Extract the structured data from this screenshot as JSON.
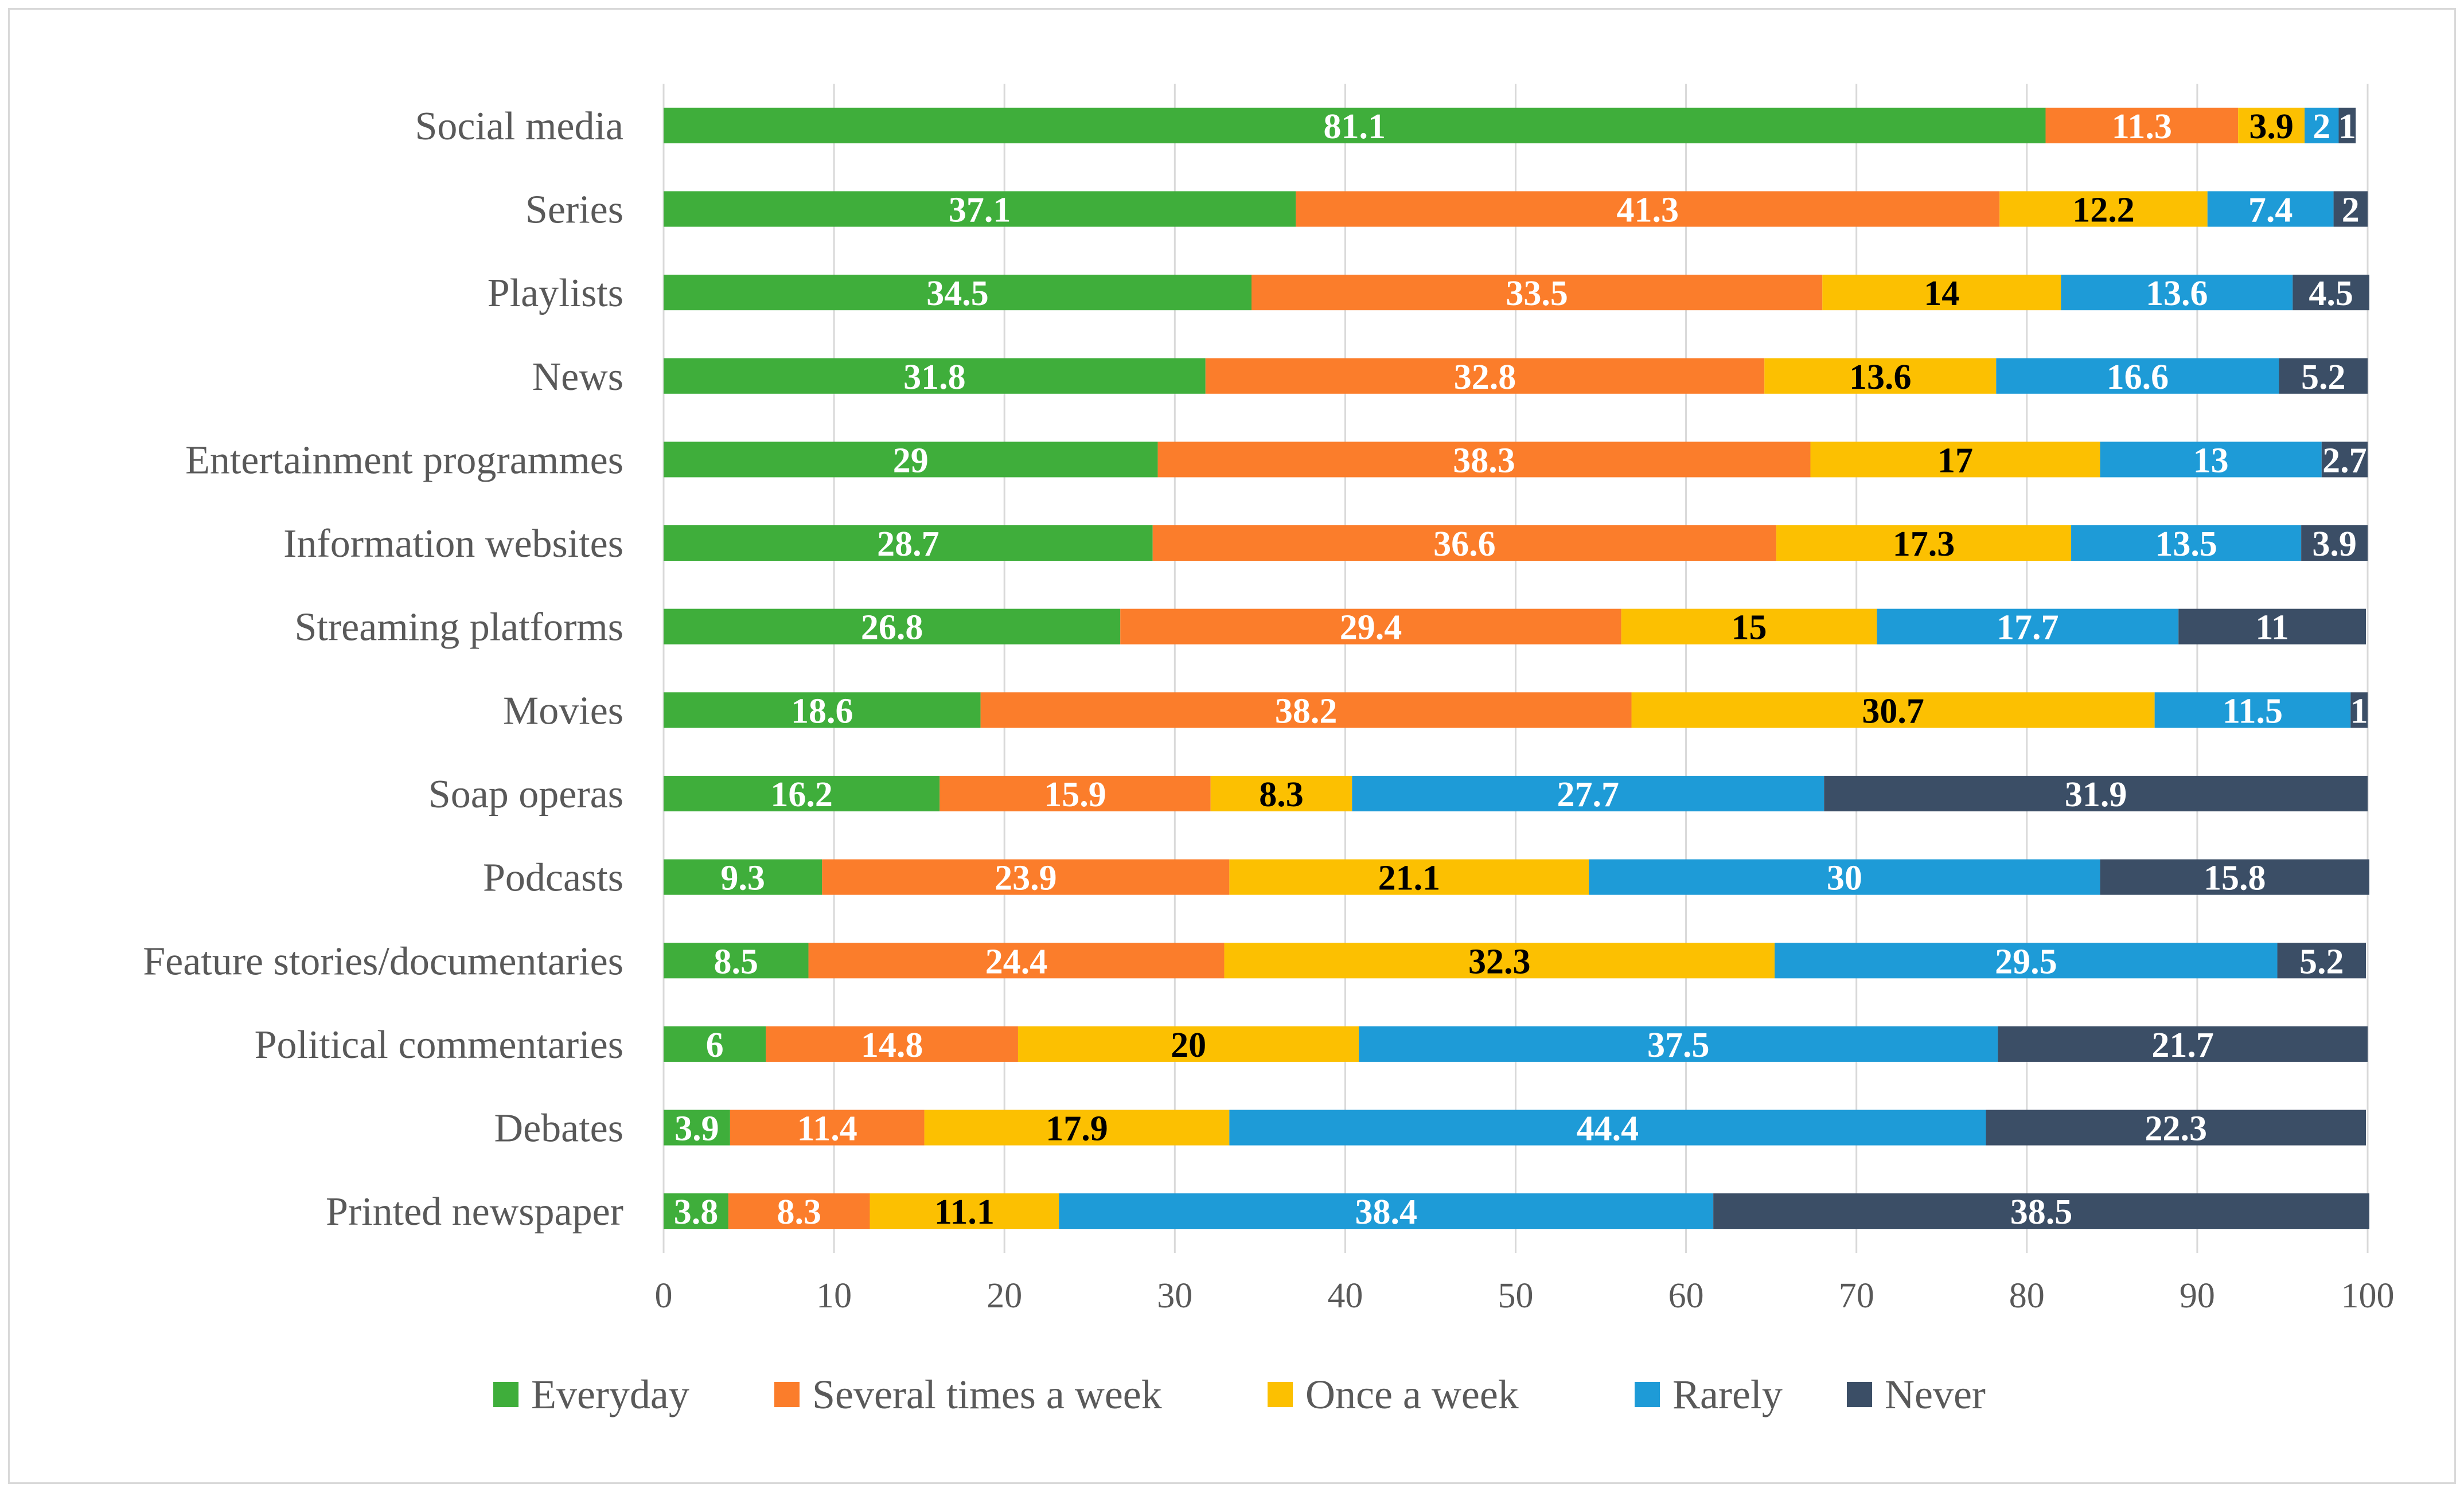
{
  "chart_data": {
    "type": "bar",
    "orientation": "horizontal",
    "stacked": true,
    "title": "",
    "xlabel": "",
    "ylabel": "",
    "xlim": [
      0,
      100
    ],
    "x_ticks": [
      "0",
      "10",
      "20",
      "30",
      "40",
      "50",
      "60",
      "70",
      "80",
      "90",
      "100"
    ],
    "grid": true,
    "legend_position": "bottom",
    "categories": [
      "Social media",
      "Series",
      "Playlists",
      "News",
      "Entertainment programmes",
      "Information websites",
      "Streaming platforms",
      "Movies",
      "Soap operas",
      "Podcasts",
      "Feature stories/documentaries",
      "Political commentaries",
      "Debates",
      "Printed newspaper"
    ],
    "series": [
      {
        "name": "Everyday",
        "color": "#3fae3b",
        "label_color": "#ffffff",
        "values": [
          81.1,
          37.1,
          34.5,
          31.8,
          29,
          28.7,
          26.8,
          18.6,
          16.2,
          9.3,
          8.5,
          6,
          3.9,
          3.8
        ],
        "labels": [
          "81.1",
          "37.1",
          "34.5",
          "31.8",
          "29",
          "28.7",
          "26.8",
          "18.6",
          "16.2",
          "9.3",
          "8.5",
          "6",
          "3.9",
          "3.8"
        ]
      },
      {
        "name": "Several times a week",
        "color": "#fb7d2b",
        "label_color": "#ffffff",
        "values": [
          11.3,
          41.3,
          33.5,
          32.8,
          38.3,
          36.6,
          29.4,
          38.2,
          15.9,
          23.9,
          24.4,
          14.8,
          11.4,
          8.3
        ],
        "labels": [
          "11.3",
          "41.3",
          "33.5",
          "32.8",
          "38.3",
          "36.6",
          "29.4",
          "38.2",
          "15.9",
          "23.9",
          "24.4",
          "14.8",
          "11.4",
          "8.3"
        ]
      },
      {
        "name": "Once a week",
        "color": "#fcc001",
        "label_color": "#000000",
        "values": [
          3.9,
          12.2,
          14,
          13.6,
          17,
          17.3,
          15,
          30.7,
          8.3,
          21.1,
          32.3,
          20,
          17.9,
          11.1
        ],
        "labels": [
          "3.9",
          "12.2",
          "14",
          "13.6",
          "17",
          "17.3",
          "15",
          "30.7",
          "8.3",
          "21.1",
          "32.3",
          "20",
          "17.9",
          "11.1"
        ]
      },
      {
        "name": "Rarely",
        "color": "#1e9bd7",
        "label_color": "#ffffff",
        "values": [
          2,
          7.4,
          13.6,
          16.6,
          13,
          13.5,
          17.7,
          11.5,
          27.7,
          30,
          29.5,
          37.5,
          44.4,
          38.4
        ],
        "labels": [
          "2",
          "7.4",
          "13.6",
          "16.6",
          "13",
          "13.5",
          "17.7",
          "11.5",
          "27.7",
          "30",
          "29.5",
          "37.5",
          "44.4",
          "38.4"
        ]
      },
      {
        "name": "Never",
        "color": "#3b4e66",
        "label_color": "#ffffff",
        "values": [
          1,
          2,
          4.5,
          5.2,
          2.7,
          3.9,
          11,
          1,
          31.9,
          15.8,
          5.2,
          21.7,
          22.3,
          38.5
        ],
        "labels": [
          "1",
          "2",
          "4.5",
          "5.2",
          "2.7",
          "3.9",
          "11",
          "1",
          "31.9",
          "15.8",
          "5.2",
          "21.7",
          "22.3",
          "38.5"
        ]
      }
    ]
  }
}
